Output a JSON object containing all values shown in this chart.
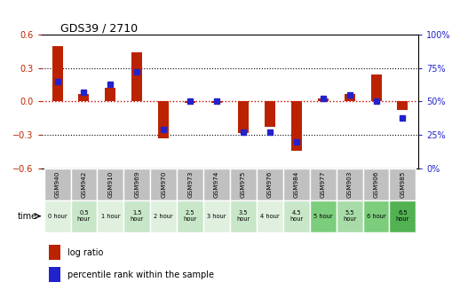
{
  "title": "GDS39 / 2710",
  "samples": [
    "GSM940",
    "GSM942",
    "GSM910",
    "GSM969",
    "GSM970",
    "GSM973",
    "GSM974",
    "GSM975",
    "GSM976",
    "GSM984",
    "GSM977",
    "GSM903",
    "GSM906",
    "GSM985"
  ],
  "time_labels": [
    "0 hour",
    "0.5\nhour",
    "1 hour",
    "1.5\nhour",
    "2 hour",
    "2.5\nhour",
    "3 hour",
    "3.5\nhour",
    "4 hour",
    "4.5\nhour",
    "5 hour",
    "5.5\nhour",
    "6 hour",
    "6.5\nhour"
  ],
  "time_colors": [
    "#dff0df",
    "#c8e6c8",
    "#dff0df",
    "#c8e6c8",
    "#dff0df",
    "#c8e6c8",
    "#dff0df",
    "#c8e6c8",
    "#dff0df",
    "#c8e6c8",
    "#7ccd7c",
    "#a8dba8",
    "#7ccd7c",
    "#52b252"
  ],
  "log_ratio": [
    0.5,
    0.07,
    0.12,
    0.44,
    -0.33,
    -0.01,
    -0.01,
    -0.28,
    -0.23,
    -0.44,
    0.03,
    0.07,
    0.24,
    -0.08
  ],
  "percentile": [
    65,
    57,
    63,
    72,
    29,
    50,
    50,
    27,
    27,
    20,
    52,
    55,
    50,
    38
  ],
  "ylim_left": [
    -0.6,
    0.6
  ],
  "ylim_right": [
    0,
    100
  ],
  "yticks_left": [
    -0.6,
    -0.3,
    0.0,
    0.3,
    0.6
  ],
  "yticks_right": [
    0,
    25,
    50,
    75,
    100
  ],
  "bar_color": "#bb2200",
  "dot_color": "#2222cc",
  "bg_color": "#ffffff",
  "header_color": "#c0c0c0",
  "zero_line_color": "#cc0000",
  "grid_color": "#444444"
}
